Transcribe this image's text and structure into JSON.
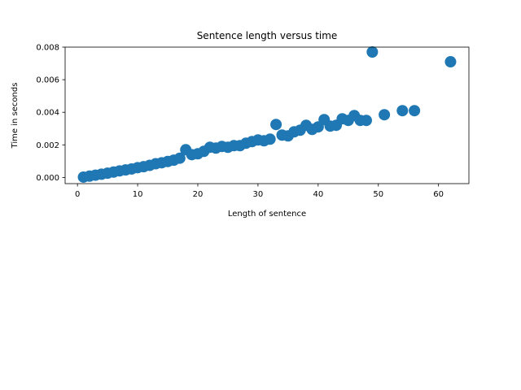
{
  "chart_data": {
    "type": "scatter",
    "title": "Sentence length versus time",
    "xlabel": "Length of sentence",
    "ylabel": "Time in seconds",
    "xlim": [
      -2.05,
      65.05
    ],
    "ylim": [
      -0.00038,
      0.008
    ],
    "x_ticks": [
      0,
      10,
      20,
      30,
      40,
      50,
      60
    ],
    "x_tick_labels": [
      "0",
      "10",
      "20",
      "30",
      "40",
      "50",
      "60"
    ],
    "y_ticks": [
      0.0,
      0.002,
      0.004,
      0.006,
      0.008
    ],
    "y_tick_labels": [
      "0.000",
      "0.002",
      "0.004",
      "0.006",
      "0.008"
    ],
    "grid": false,
    "legend": "none",
    "marker_color": "#1f77b4",
    "series": [
      {
        "x": [
          1,
          2,
          3,
          4,
          5,
          6,
          7,
          8,
          9,
          10,
          11,
          12,
          13,
          14,
          15,
          16,
          17,
          18,
          19,
          20,
          21,
          22,
          23,
          24,
          25,
          26,
          27,
          28,
          29,
          30,
          31,
          32,
          33,
          34,
          35,
          36,
          37,
          38,
          39,
          40,
          41,
          42,
          43,
          44,
          45,
          46,
          47,
          48,
          49,
          51,
          54,
          56,
          62
        ],
        "y": [
          2e-05,
          8e-05,
          0.00014,
          0.0002,
          0.00026,
          0.00033,
          0.0004,
          0.00046,
          0.00052,
          0.0006,
          0.00066,
          0.00074,
          0.00084,
          0.0009,
          0.00098,
          0.00106,
          0.00118,
          0.0017,
          0.0014,
          0.00145,
          0.0016,
          0.00185,
          0.0018,
          0.0019,
          0.00185,
          0.00195,
          0.00195,
          0.0021,
          0.0022,
          0.0023,
          0.00225,
          0.00235,
          0.00325,
          0.0026,
          0.00255,
          0.0028,
          0.0029,
          0.0032,
          0.00295,
          0.0031,
          0.00355,
          0.00315,
          0.0032,
          0.0036,
          0.0035,
          0.0038,
          0.0035,
          0.0035,
          0.0077,
          0.00385,
          0.0041,
          0.0041,
          0.0071
        ]
      }
    ]
  }
}
